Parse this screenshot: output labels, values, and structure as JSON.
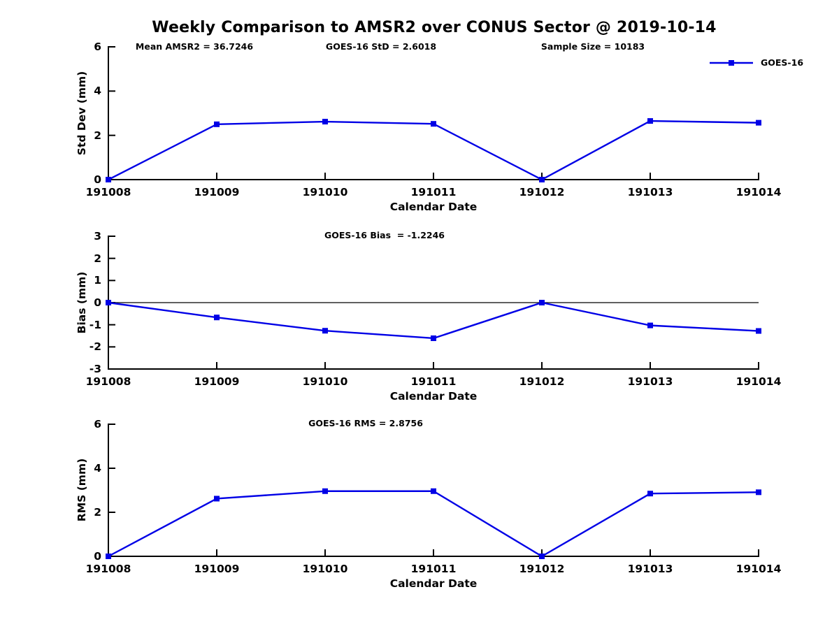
{
  "page": {
    "title": "Weekly Comparison to AMSR2 over CONUS Sector @ 2019-10-14",
    "background": "#ffffff"
  },
  "colors": {
    "series": "#0000e6",
    "axis": "#000000",
    "text": "#000000"
  },
  "legend": {
    "label": "GOES-16",
    "position": "top-right",
    "marker": "square",
    "line_color": "#0000e6"
  },
  "chart_data": [
    {
      "type": "line",
      "id": "std-dev",
      "annotations": [
        "Mean AMSR2 = 36.7246",
        "GOES-16 StD = 2.6018",
        "Sample Size = 10183"
      ],
      "categories": [
        "191008",
        "191009",
        "191010",
        "191011",
        "191012",
        "191013",
        "191014"
      ],
      "series": [
        {
          "name": "GOES-16",
          "marker": "square",
          "color": "#0000e6",
          "values": [
            0,
            2.5,
            2.62,
            2.52,
            0,
            2.65,
            2.57
          ]
        }
      ],
      "xlabel": "Calendar Date",
      "ylabel": "Std Dev (mm)",
      "ylim": [
        0,
        6
      ],
      "yticks": [
        0,
        2,
        4,
        6
      ],
      "grid": false,
      "zero_line": false,
      "legend_visible": true
    },
    {
      "type": "line",
      "id": "bias",
      "annotations": [
        "GOES-16 Bias  = -1.2246"
      ],
      "categories": [
        "191008",
        "191009",
        "191010",
        "191011",
        "191012",
        "191013",
        "191014"
      ],
      "series": [
        {
          "name": "GOES-16",
          "marker": "square",
          "color": "#0000e6",
          "values": [
            0,
            -0.67,
            -1.27,
            -1.61,
            0,
            -1.03,
            -1.28
          ]
        }
      ],
      "xlabel": "Calendar Date",
      "ylabel": "Bias (mm)",
      "ylim": [
        -3,
        3
      ],
      "yticks": [
        -3,
        -2,
        -1,
        0,
        1,
        2,
        3
      ],
      "grid": false,
      "zero_line": true,
      "legend_visible": false
    },
    {
      "type": "line",
      "id": "rms",
      "annotations": [
        "GOES-16 RMS = 2.8756"
      ],
      "categories": [
        "191008",
        "191009",
        "191010",
        "191011",
        "191012",
        "191013",
        "191014"
      ],
      "series": [
        {
          "name": "GOES-16",
          "marker": "square",
          "color": "#0000e6",
          "values": [
            0,
            2.62,
            2.96,
            2.96,
            0,
            2.85,
            2.91
          ]
        }
      ],
      "xlabel": "Calendar Date",
      "ylabel": "RMS (mm)",
      "ylim": [
        0,
        6
      ],
      "yticks": [
        0,
        2,
        4,
        6
      ],
      "grid": false,
      "zero_line": false,
      "legend_visible": false
    }
  ]
}
